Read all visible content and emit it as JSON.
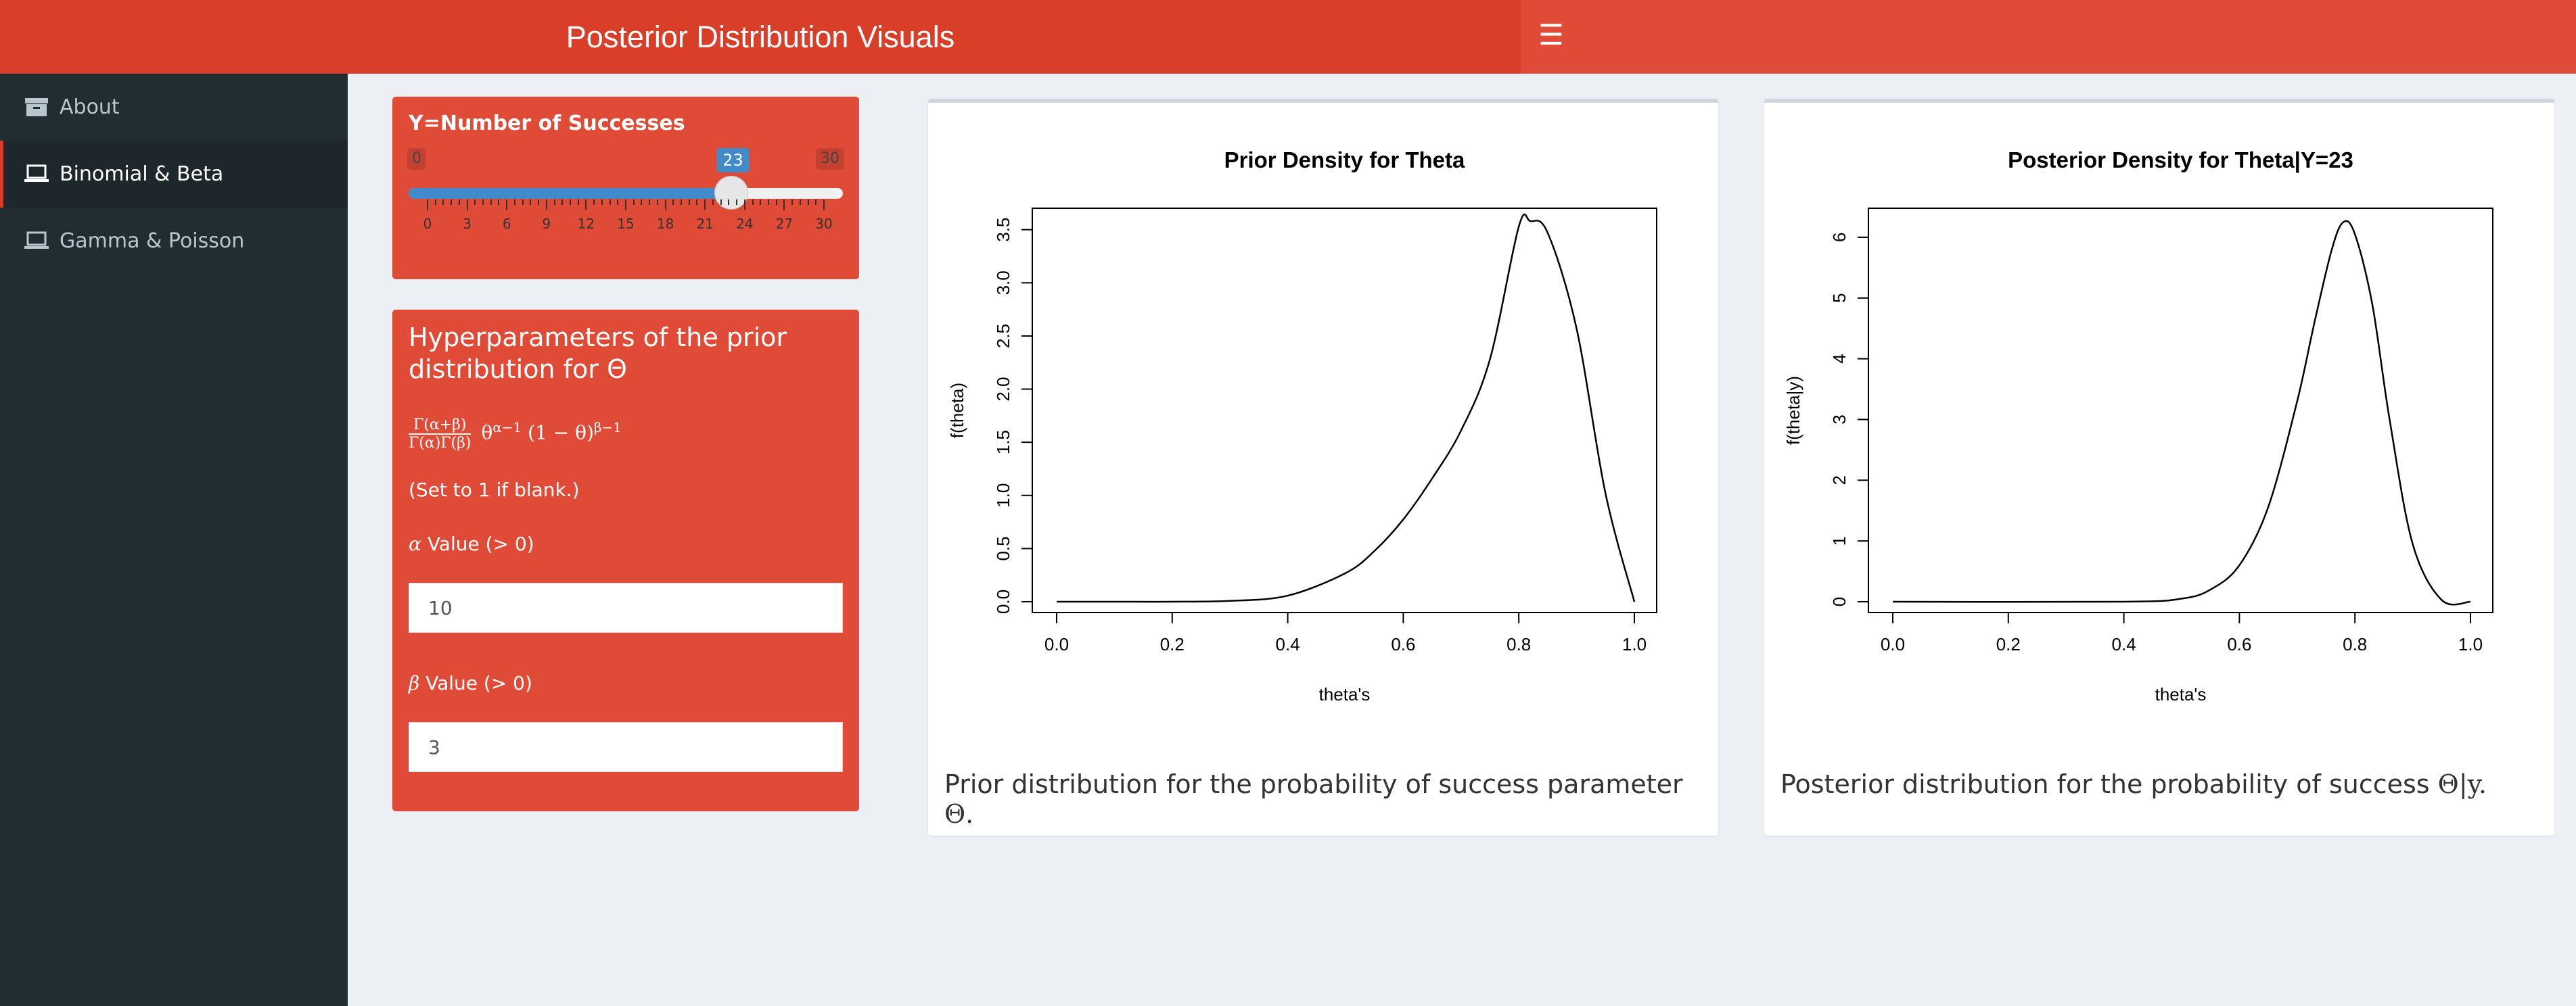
{
  "header": {
    "title": "Posterior Distribution Visuals",
    "menu_icon": "hamburger-icon"
  },
  "sidebar": {
    "items": [
      {
        "label": "About",
        "icon": "archive-icon",
        "active": false
      },
      {
        "label": "Binomial & Beta",
        "icon": "laptop-icon",
        "active": true
      },
      {
        "label": "Gamma & Poisson",
        "icon": "laptop-icon",
        "active": false
      }
    ]
  },
  "slider": {
    "title": "Y=Number of Successes",
    "min": 0,
    "max": 30,
    "value": 23,
    "min_label": "0",
    "max_label": "30",
    "value_label": "23",
    "ticks": [
      "0",
      "3",
      "6",
      "9",
      "12",
      "15",
      "18",
      "21",
      "24",
      "27",
      "30"
    ]
  },
  "hyperparameters": {
    "title": "Hyperparameters of the prior distribution for Θ",
    "formula": {
      "numerator": "Γ(α+β)",
      "denominator": "Γ(α)Γ(β)",
      "theta": "θ",
      "exp1": "α−1",
      "middle": "(1 − θ)",
      "exp2": "β−1"
    },
    "note": "(Set to 1 if blank.)",
    "alpha": {
      "symbol": "α",
      "label": " Value (> 0)",
      "value": "10"
    },
    "beta": {
      "symbol": "β",
      "label": " Value (> 0)",
      "value": "3"
    }
  },
  "prior_plot": {
    "caption_text": "Prior distribution for the probability of success parameter ",
    "caption_symbol": "Θ.",
    "chart_data": {
      "type": "line",
      "title": "Prior Density for Theta",
      "xlabel": "theta's",
      "ylabel": "f(theta)",
      "distribution": "Beta(10, 3)",
      "xlim": [
        0,
        1
      ],
      "ylim": [
        0,
        3.6
      ],
      "xticks": [
        "0.0",
        "0.2",
        "0.4",
        "0.6",
        "0.8",
        "1.0"
      ],
      "yticks": [
        "0.0",
        "0.5",
        "1.0",
        "1.5",
        "2.0",
        "2.5",
        "3.0",
        "3.5"
      ],
      "series": [
        {
          "x": [
            0.0,
            0.1,
            0.2,
            0.3,
            0.4,
            0.5,
            0.55,
            0.6,
            0.65,
            0.7,
            0.75,
            0.8,
            0.82,
            0.85,
            0.9,
            0.95,
            1.0
          ],
          "y": [
            0.0,
            0.0,
            0.0,
            0.008,
            0.057,
            0.269,
            0.477,
            0.774,
            1.16,
            1.61,
            2.28,
            3.53,
            3.58,
            3.47,
            2.57,
            1.02,
            0.0
          ]
        }
      ]
    }
  },
  "posterior_plot": {
    "caption_text": "Posterior distribution for the probability of success ",
    "caption_symbol": "Θ|y.",
    "chart_data": {
      "type": "line",
      "title": "Posterior Density for Theta|Y=23",
      "xlabel": "theta's",
      "ylabel": "f(theta|y)",
      "distribution": "Beta(33, 10)",
      "xlim": [
        0,
        1
      ],
      "ylim": [
        0,
        6.3
      ],
      "xticks": [
        "0.0",
        "0.2",
        "0.4",
        "0.6",
        "0.8",
        "1.0"
      ],
      "yticks": [
        "0",
        "1",
        "2",
        "3",
        "4",
        "5",
        "6"
      ],
      "series": [
        {
          "x": [
            0.0,
            0.4,
            0.5,
            0.55,
            0.6,
            0.65,
            0.7,
            0.73,
            0.76,
            0.78,
            0.8,
            0.83,
            0.86,
            0.9,
            0.95,
            1.0
          ],
          "y": [
            0.0,
            0.0,
            0.05,
            0.2,
            0.6,
            1.56,
            3.3,
            4.6,
            5.8,
            6.25,
            6.05,
            4.9,
            3.0,
            0.95,
            0.03,
            0.0
          ]
        }
      ]
    }
  }
}
